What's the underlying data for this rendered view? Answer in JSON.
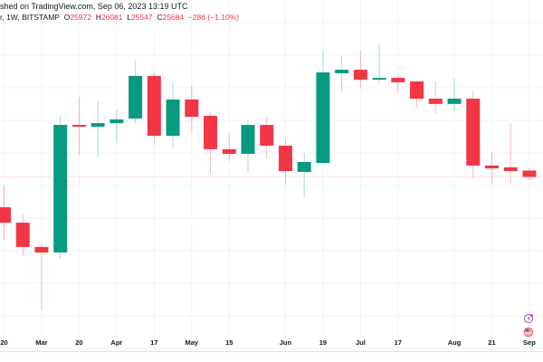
{
  "header": {
    "published": "shed on TradingView.com, Sep 06, 2023 13:19 UTC",
    "symbol": "r, 1W, BITSTAMP",
    "o_label": "O",
    "o": "25972",
    "h_label": "H",
    "h": "26081",
    "l_label": "L",
    "l": "25547",
    "c_label": "C",
    "c": "25684",
    "change": "−286 (−1.10%)"
  },
  "icons": [
    "lightning-event-icon",
    "us-flag-icon"
  ],
  "colors": {
    "up": "#089981",
    "down": "#f23645",
    "price_line": "#f23645",
    "grid": "#f0f3fa"
  },
  "chart_data": {
    "type": "candlestick",
    "interval": "1W",
    "current_price": 25684,
    "x_tick_labels": [
      {
        "date": "Feb 20",
        "label": "20"
      },
      {
        "date": "Mar 6",
        "label": "Mar"
      },
      {
        "date": "Mar 20",
        "label": "20"
      },
      {
        "date": "Apr 3",
        "label": "Apr"
      },
      {
        "date": "Apr 17",
        "label": "17"
      },
      {
        "date": "May 1",
        "label": "May"
      },
      {
        "date": "May 15",
        "label": "15"
      },
      {
        "date": "Jun 5",
        "label": "Jun"
      },
      {
        "date": "Jun 19",
        "label": "19"
      },
      {
        "date": "Jul 3",
        "label": "Jul"
      },
      {
        "date": "Jul 17",
        "label": "17"
      },
      {
        "date": "Aug 7",
        "label": "Aug"
      },
      {
        "date": "Aug 21",
        "label": "21"
      },
      {
        "date": "Sep 4",
        "label": "Sep"
      }
    ],
    "candles": [
      {
        "date": "Feb 20",
        "o": 24310,
        "h": 25290,
        "l": 22830,
        "c": 23610
      },
      {
        "date": "Feb 27",
        "o": 23610,
        "h": 24020,
        "l": 22100,
        "c": 22510
      },
      {
        "date": "Mar 6",
        "o": 22510,
        "h": 22670,
        "l": 19680,
        "c": 22260
      },
      {
        "date": "Mar 13",
        "o": 22260,
        "h": 28450,
        "l": 21970,
        "c": 28040
      },
      {
        "date": "Mar 20",
        "o": 28040,
        "h": 29310,
        "l": 26690,
        "c": 27960
      },
      {
        "date": "Mar 27",
        "o": 27960,
        "h": 29110,
        "l": 26570,
        "c": 28120
      },
      {
        "date": "Apr 3",
        "o": 28120,
        "h": 28740,
        "l": 27220,
        "c": 28290
      },
      {
        "date": "Apr 10",
        "o": 28330,
        "h": 30950,
        "l": 28120,
        "c": 30260
      },
      {
        "date": "Apr 17",
        "o": 30260,
        "h": 30420,
        "l": 27140,
        "c": 27550
      },
      {
        "date": "Apr 24",
        "o": 27550,
        "h": 29970,
        "l": 26980,
        "c": 29190
      },
      {
        "date": "May 1",
        "o": 29190,
        "h": 29810,
        "l": 27670,
        "c": 28410
      },
      {
        "date": "May 8",
        "o": 28450,
        "h": 28660,
        "l": 25830,
        "c": 26940
      },
      {
        "date": "May 15",
        "o": 26940,
        "h": 27670,
        "l": 26400,
        "c": 26730
      },
      {
        "date": "May 22",
        "o": 26730,
        "h": 28250,
        "l": 25870,
        "c": 28040
      },
      {
        "date": "May 29",
        "o": 28040,
        "h": 28450,
        "l": 26530,
        "c": 27100
      },
      {
        "date": "Jun 5",
        "o": 27100,
        "h": 27390,
        "l": 25380,
        "c": 25950
      },
      {
        "date": "Jun 12",
        "o": 25910,
        "h": 26770,
        "l": 24760,
        "c": 26360
      },
      {
        "date": "Jun 19",
        "o": 26320,
        "h": 31360,
        "l": 26280,
        "c": 30420
      },
      {
        "date": "Jun 26",
        "o": 30380,
        "h": 31160,
        "l": 29480,
        "c": 30540
      },
      {
        "date": "Jul 3",
        "o": 30540,
        "h": 31400,
        "l": 29680,
        "c": 30090
      },
      {
        "date": "Jul 10",
        "o": 30090,
        "h": 31730,
        "l": 29890,
        "c": 30170
      },
      {
        "date": "Jul 17",
        "o": 30170,
        "h": 30340,
        "l": 29480,
        "c": 29970
      },
      {
        "date": "Jul 24",
        "o": 30010,
        "h": 30050,
        "l": 28820,
        "c": 29230
      },
      {
        "date": "Jul 31",
        "o": 29230,
        "h": 30010,
        "l": 28530,
        "c": 28990
      },
      {
        "date": "Aug 7",
        "o": 28990,
        "h": 30130,
        "l": 28660,
        "c": 29230
      },
      {
        "date": "Aug 14",
        "o": 29230,
        "h": 29600,
        "l": 25620,
        "c": 26200
      },
      {
        "date": "Aug 21",
        "o": 26200,
        "h": 26810,
        "l": 25380,
        "c": 26070
      },
      {
        "date": "Aug 28",
        "o": 26120,
        "h": 28120,
        "l": 25380,
        "c": 25950
      },
      {
        "date": "Sep 4",
        "o": 25972,
        "h": 26081,
        "l": 25547,
        "c": 25684
      }
    ]
  }
}
